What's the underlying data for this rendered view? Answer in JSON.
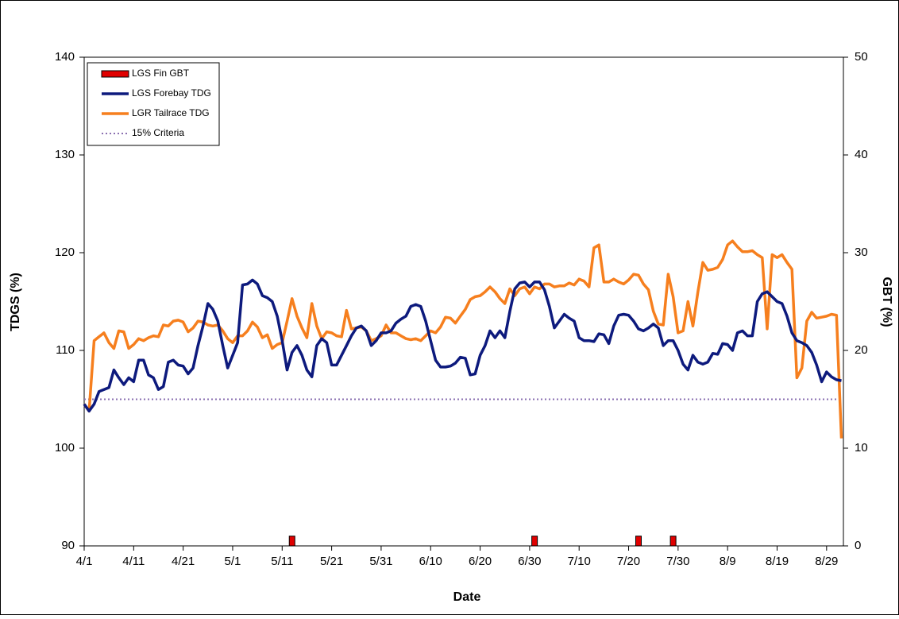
{
  "chart_data": {
    "type": "line",
    "xlabel": "Date",
    "ylabel": "TDGS (%)",
    "y2label": "GBT (%)",
    "xlim": [
      0,
      153.4
    ],
    "ylim": [
      90,
      140
    ],
    "y2lim": [
      0,
      50
    ],
    "xticks": [
      {
        "value": 0,
        "label": "4/1"
      },
      {
        "value": 10,
        "label": "4/11"
      },
      {
        "value": 20,
        "label": "4/21"
      },
      {
        "value": 30,
        "label": "5/1"
      },
      {
        "value": 40,
        "label": "5/11"
      },
      {
        "value": 50,
        "label": "5/21"
      },
      {
        "value": 60,
        "label": "5/31"
      },
      {
        "value": 70,
        "label": "6/10"
      },
      {
        "value": 80,
        "label": "6/20"
      },
      {
        "value": 90,
        "label": "6/30"
      },
      {
        "value": 100,
        "label": "7/10"
      },
      {
        "value": 110,
        "label": "7/20"
      },
      {
        "value": 120,
        "label": "7/30"
      },
      {
        "value": 130,
        "label": "8/9"
      },
      {
        "value": 140,
        "label": "8/19"
      },
      {
        "value": 150,
        "label": "8/29"
      }
    ],
    "yticks": [
      90,
      100,
      110,
      120,
      130,
      140
    ],
    "y2ticks": [
      0,
      10,
      20,
      30,
      40,
      50
    ],
    "legend": "upper-left",
    "x": [
      0,
      1,
      2,
      3,
      4,
      5,
      6,
      7,
      8,
      9,
      10,
      11,
      12,
      13,
      14,
      15,
      16,
      17,
      18,
      19,
      20,
      21,
      22,
      23,
      24,
      25,
      26,
      27,
      28,
      29,
      30,
      31,
      32,
      33,
      34,
      35,
      36,
      37,
      38,
      39,
      40,
      41,
      42,
      43,
      44,
      45,
      46,
      47,
      48,
      49,
      50,
      51,
      52,
      53,
      54,
      55,
      56,
      57,
      58,
      59,
      60,
      61,
      62,
      63,
      64,
      65,
      66,
      67,
      68,
      69,
      70,
      71,
      72,
      73,
      74,
      75,
      76,
      77,
      78,
      79,
      80,
      81,
      82,
      83,
      84,
      85,
      86,
      87,
      88,
      89,
      90,
      91,
      92,
      93,
      94,
      95,
      96,
      97,
      98,
      99,
      100,
      101,
      102,
      103,
      104,
      105,
      106,
      107,
      108,
      109,
      110,
      111,
      112,
      113,
      114,
      115,
      116,
      117,
      118,
      119,
      120,
      121,
      122,
      123,
      124,
      125,
      126,
      127,
      128,
      129,
      130,
      131,
      132,
      133,
      134,
      135,
      136,
      137,
      138,
      139,
      140,
      141,
      142,
      143,
      144,
      145,
      146,
      147,
      148,
      149,
      150,
      151,
      152,
      153
    ],
    "series": [
      {
        "name": "LGS Fin GBT",
        "type": "bar",
        "axis": "y2",
        "color": "#e00000",
        "x": [
          42,
          91,
          112,
          119
        ],
        "values": [
          1,
          1,
          1,
          1
        ]
      },
      {
        "name": "LGS Forebay TDG",
        "type": "line",
        "color": "#0d1a7d",
        "values": [
          104.5,
          103.8,
          104.5,
          105.8,
          106,
          106.2,
          108,
          107.2,
          106.5,
          107.2,
          106.8,
          109,
          109,
          107.5,
          107.2,
          106,
          106.3,
          108.8,
          109,
          108.5,
          108.4,
          107.6,
          108.2,
          110.5,
          112.5,
          114.8,
          114.2,
          113,
          110.5,
          108.2,
          109.5,
          110.8,
          116.7,
          116.8,
          117.2,
          116.8,
          115.6,
          115.4,
          115,
          113.5,
          111,
          108,
          109.8,
          110.5,
          109.5,
          108,
          107.3,
          110.5,
          111.2,
          110.8,
          108.5,
          108.5,
          109.5,
          110.5,
          111.5,
          112.3,
          112.5,
          112,
          110.5,
          111,
          111.8,
          111.8,
          112,
          112.8,
          113.2,
          113.5,
          114.5,
          114.7,
          114.5,
          113,
          111,
          109,
          108.3,
          108.3,
          108.4,
          108.7,
          109.3,
          109.2,
          107.5,
          107.6,
          109.5,
          110.5,
          112,
          111.3,
          112,
          111.3,
          114,
          116.3,
          116.9,
          117,
          116.5,
          117,
          117,
          116.2,
          114.5,
          112.3,
          113,
          113.7,
          113.3,
          113,
          111.3,
          111,
          111,
          110.9,
          111.7,
          111.6,
          110.7,
          112.5,
          113.6,
          113.7,
          113.6,
          113,
          112.2,
          112,
          112.3,
          112.7,
          112.3,
          110.5,
          111,
          111,
          110,
          108.6,
          108,
          109.5,
          108.8,
          108.6,
          108.8,
          109.7,
          109.6,
          110.7,
          110.6,
          110,
          111.8,
          112,
          111.5,
          111.5,
          115,
          115.8,
          116,
          115.5,
          115,
          114.8,
          113.5,
          111.8,
          111,
          110.8,
          110.5,
          109.8,
          108.5,
          106.8,
          107.8,
          107.3,
          107,
          106.9
        ]
      },
      {
        "name": "LGR Tailrace TDG",
        "type": "line",
        "color": "#f67f1e",
        "values": [
          104.5,
          103.8,
          111,
          111.4,
          111.8,
          110.8,
          110.2,
          112,
          111.9,
          110.2,
          110.6,
          111.2,
          111,
          111.3,
          111.5,
          111.4,
          112.6,
          112.5,
          113,
          113.1,
          112.9,
          111.9,
          112.3,
          113,
          112.9,
          112.6,
          112.5,
          112.6,
          112,
          111.2,
          110.8,
          111.5,
          111.5,
          112,
          112.9,
          112.4,
          111.3,
          111.6,
          110.2,
          110.6,
          110.8,
          113,
          115.3,
          113.5,
          112.3,
          111.3,
          114.8,
          112.5,
          111.2,
          111.9,
          111.8,
          111.5,
          111.4,
          114.1,
          112.2,
          112.3,
          112.4,
          112,
          111,
          111.2,
          111.5,
          112.6,
          111.8,
          111.8,
          111.5,
          111.2,
          111.1,
          111.2,
          111,
          111.5,
          112,
          111.8,
          112.4,
          113.4,
          113.3,
          112.8,
          113.5,
          114.2,
          115.2,
          115.5,
          115.6,
          116,
          116.5,
          116,
          115.3,
          114.8,
          116.3,
          115.6,
          116.3,
          116.5,
          115.8,
          116.5,
          116.3,
          116.8,
          116.8,
          116.5,
          116.6,
          116.6,
          116.9,
          116.7,
          117.3,
          117.1,
          116.5,
          120.5,
          120.8,
          117,
          117,
          117.3,
          117,
          116.8,
          117.2,
          117.8,
          117.7,
          116.8,
          116.2,
          114,
          112.7,
          112.6,
          117.8,
          115.5,
          111.8,
          112,
          115,
          112.5,
          116,
          119,
          118.2,
          118.3,
          118.5,
          119.3,
          120.8,
          121.2,
          120.6,
          120.1,
          120.1,
          120.2,
          119.8,
          119.5,
          112.2,
          119.8,
          119.5,
          119.8,
          119,
          118.3,
          107.2,
          108.2,
          113,
          113.9,
          113.3,
          113.4,
          113.5,
          113.7,
          113.6,
          101
        ]
      },
      {
        "name": "15% Criteria",
        "type": "dotted",
        "color": "#8a6fb0",
        "x": [
          0,
          153
        ],
        "values": [
          105,
          105
        ]
      }
    ]
  }
}
